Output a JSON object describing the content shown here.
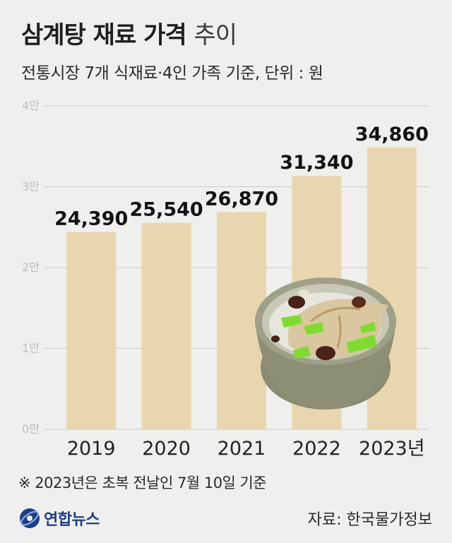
{
  "header": {
    "title_bold": "삼계탕 재료 가격",
    "title_light": "추이",
    "subtitle": "전통시장 7개 식재료·4인 가족 기준, 단위 : 원"
  },
  "chart_data": {
    "type": "bar",
    "title": "삼계탕 재료 가격 추이",
    "subtitle": "전통시장 7개 식재료·4인 가족 기준, 단위 : 원",
    "categories": [
      "2019",
      "2020",
      "2021",
      "2022",
      "2023년"
    ],
    "values": [
      24390,
      25540,
      26870,
      31340,
      34860
    ],
    "value_labels": [
      "24,390",
      "25,540",
      "26,870",
      "31,340",
      "34,860"
    ],
    "yticks": [
      0,
      10000,
      20000,
      30000,
      40000
    ],
    "ytick_labels": [
      "0만",
      "1만",
      "2만",
      "3만",
      "4만"
    ],
    "ylim": [
      0,
      40000
    ],
    "grid": true,
    "bar_color": "#e8d7ae",
    "grid_color": "#c8c8c8"
  },
  "footer": {
    "footnote": "※ 2023년은 초복 전날인 7월 10일 기준",
    "brand": "연합뉴스",
    "source": "자료: 한국물가정보"
  },
  "colors": {
    "background": "#efefed",
    "bar": "#e8d7ae",
    "brand": "#1d3e86"
  }
}
